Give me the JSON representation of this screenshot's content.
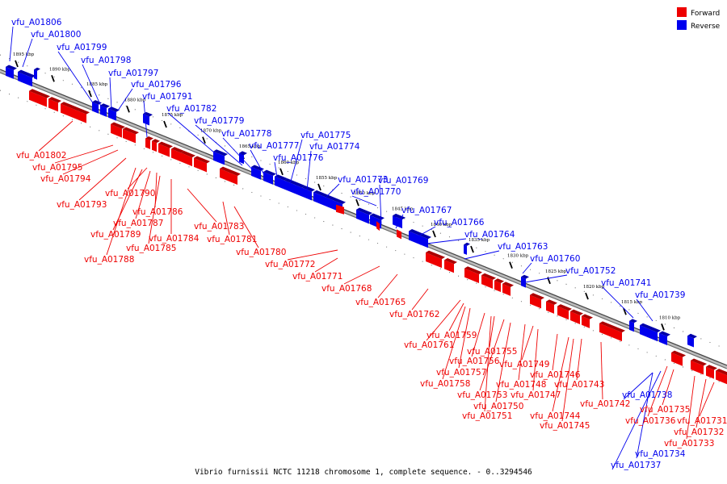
{
  "title": "Vibrio furnissii NCTC 11218 chromosome 1, complete sequence. - 0..3294546",
  "legend": [
    {
      "label": "Forward",
      "color": "#ee0000"
    },
    {
      "label": "Reverse",
      "color": "#0000ee"
    }
  ],
  "colors": {
    "forward": "#ee0000",
    "reverse": "#0000ee",
    "forward_dark": "#aa0000",
    "reverse_dark": "#0000aa",
    "axis": "#888888"
  },
  "kbp_labels": [
    "1895 kbp",
    "1890 kbp",
    "1885 kbp",
    "1880 kbp",
    "1875 kbp",
    "1870 kbp",
    "1865 kbp",
    "1860 kbp",
    "1855 kbp",
    "1850 kbp",
    "1845 kbp",
    "1840 kbp",
    "1835 kbp",
    "1830 kbp",
    "1825 kbp",
    "1820 kbp",
    "1815 kbp",
    "1810 kbp"
  ],
  "reverse_genes": [
    "vfu_A01806",
    "vfu_A01800",
    "vfu_A01799",
    "vfu_A01798",
    "vfu_A01797",
    "vfu_A01796",
    "vfu_A01791",
    "vfu_A01782",
    "vfu_A01779",
    "vfu_A01778",
    "vfu_A01777",
    "vfu_A01776",
    "vfu_A01775",
    "vfu_A01774",
    "vfu_A01773",
    "vfu_A01770",
    "vfu_A01769",
    "vfu_A01767",
    "vfu_A01766",
    "vfu_A01764",
    "vfu_A01763",
    "vfu_A01760",
    "vfu_A01752",
    "vfu_A01741",
    "vfu_A01739",
    "vfu_A01738",
    "vfu_A01734",
    "vfu_A01737"
  ],
  "forward_genes": [
    "vfu_A01802",
    "vfu_A01795",
    "vfu_A01794",
    "vfu_A01793",
    "vfu_A01790",
    "vfu_A01786",
    "vfu_A01787",
    "vfu_A01789",
    "vfu_A01784",
    "vfu_A01785",
    "vfu_A01788",
    "vfu_A01783",
    "vfu_A01781",
    "vfu_A01780",
    "vfu_A01772",
    "vfu_A01771",
    "vfu_A01768",
    "vfu_A01765",
    "vfu_A01762",
    "vfu_A01759",
    "vfu_A01761",
    "vfu_A01755",
    "vfu_A01756",
    "vfu_A01757",
    "vfu_A01758",
    "vfu_A01753",
    "vfu_A01750",
    "vfu_A01751",
    "vfu_A01749",
    "vfu_A01748",
    "vfu_A01747",
    "vfu_A01746",
    "vfu_A01743",
    "vfu_A01744",
    "vfu_A01745",
    "vfu_A01742",
    "vfu_A01735",
    "vfu_A01736",
    "vfu_A01733",
    "vfu_A01732",
    "vfu_A01731"
  ]
}
